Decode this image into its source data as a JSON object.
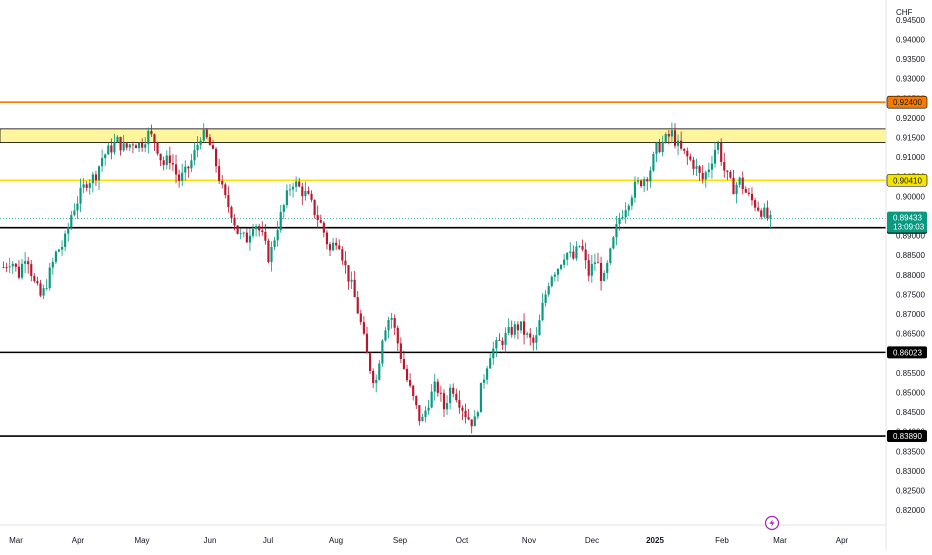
{
  "currency_label": "CHF",
  "chart_data": {
    "type": "candlestick",
    "title": "",
    "ylim": [
      0.8175,
      0.9475
    ],
    "y_ticks": [
      "0.94500",
      "0.94000",
      "0.93500",
      "0.93000",
      "0.92500",
      "0.92000",
      "0.91500",
      "0.91000",
      "0.90500",
      "0.90000",
      "0.89500",
      "0.89000",
      "0.88500",
      "0.88000",
      "0.87500",
      "0.87000",
      "0.86500",
      "0.86000",
      "0.85500",
      "0.85000",
      "0.84500",
      "0.84000",
      "0.83500",
      "0.83000",
      "0.82500",
      "0.82000"
    ],
    "x_labels": [
      "Mar",
      "Apr",
      "May",
      "Jun",
      "Jul",
      "Aug",
      "Sep",
      "Oct",
      "Nov",
      "Dec",
      "2025",
      "Feb",
      "Mar",
      "Apr"
    ],
    "x_label_bold": "2025",
    "levels": [
      {
        "value": 0.924,
        "label": "0.92400",
        "color": "#f57c00",
        "kind": "line"
      },
      {
        "value": 0.9041,
        "label": "0.90410",
        "color": "#f5e400",
        "kind": "line"
      },
      {
        "value": 0.892,
        "label": "0.89200",
        "color": "#000000",
        "kind": "line"
      },
      {
        "value": 0.86023,
        "label": "0.86023",
        "color": "#000000",
        "kind": "line"
      },
      {
        "value": 0.8389,
        "label": "0.83890",
        "color": "#000000",
        "kind": "line"
      }
    ],
    "zone": {
      "low": 0.9137,
      "high": 0.9172,
      "color": "#fff59d"
    },
    "last_price": {
      "value": 0.89433,
      "label": "0.89433",
      "countdown": "13:09:03",
      "color": "#089981"
    },
    "up_color": "#089981",
    "down_color": "#b7172f",
    "price_path": [
      0.882,
      0.884,
      0.88,
      0.886,
      0.878,
      0.874,
      0.88,
      0.886,
      0.888,
      0.896,
      0.9,
      0.904,
      0.905,
      0.91,
      0.912,
      0.914,
      0.912,
      0.914,
      0.913,
      0.916,
      0.914,
      0.908,
      0.91,
      0.904,
      0.906,
      0.91,
      0.916,
      0.914,
      0.908,
      0.9,
      0.896,
      0.89,
      0.889,
      0.894,
      0.89,
      0.884,
      0.892,
      0.898,
      0.904,
      0.902,
      0.9,
      0.896,
      0.892,
      0.886,
      0.89,
      0.882,
      0.876,
      0.868,
      0.858,
      0.852,
      0.866,
      0.87,
      0.862,
      0.854,
      0.848,
      0.842,
      0.848,
      0.852,
      0.846,
      0.852,
      0.848,
      0.844,
      0.842,
      0.852,
      0.86,
      0.862,
      0.864,
      0.866,
      0.867,
      0.864,
      0.862,
      0.872,
      0.88,
      0.882,
      0.886,
      0.884,
      0.888,
      0.88,
      0.884,
      0.878,
      0.886,
      0.894,
      0.898,
      0.902,
      0.904,
      0.906,
      0.912,
      0.914,
      0.916,
      0.912,
      0.91,
      0.908,
      0.904,
      0.908,
      0.914,
      0.906,
      0.902,
      0.904,
      0.9,
      0.898,
      0.896,
      0.8935
    ]
  }
}
